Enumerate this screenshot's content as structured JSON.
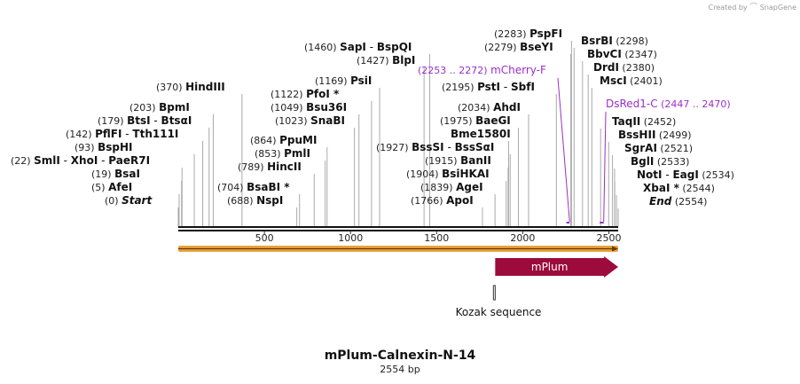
{
  "branding": {
    "created_by": "Created by",
    "product": "SnapGene"
  },
  "map": {
    "name": "mPlum-Calnexin-N-14",
    "length_label": "2554 bp",
    "length": 2554,
    "ticks": [
      500,
      1000,
      1500,
      2000,
      2500
    ]
  },
  "left_sites": [
    {
      "pos_label": "(0)",
      "names": [
        "Start"
      ],
      "italic": true,
      "cut": 0
    },
    {
      "pos_label": "(5)",
      "names": [
        "AfeI"
      ],
      "cut": 5
    },
    {
      "pos_label": "(19)",
      "names": [
        "BsaI"
      ],
      "cut": 19
    },
    {
      "pos_label": "(22)",
      "names": [
        "SmlI",
        "XhoI",
        "PaeR7I"
      ],
      "cut": 22
    },
    {
      "pos_label": "(93)",
      "names": [
        "BspHI"
      ],
      "cut": 93
    },
    {
      "pos_label": "(142)",
      "names": [
        "PflFI",
        "Tth111I"
      ],
      "cut": 142
    },
    {
      "pos_label": "(179)",
      "names": [
        "BtsI",
        "BtsαI"
      ],
      "cut": 179
    },
    {
      "pos_label": "(203)",
      "names": [
        "BpmI"
      ],
      "cut": 203
    },
    {
      "pos_label": "(370)",
      "names": [
        "HindIII"
      ],
      "cut": 370
    },
    {
      "pos_label": "(688)",
      "names": [
        "NspI"
      ],
      "cut": 688
    },
    {
      "pos_label": "(704)",
      "names": [
        "BsaBI *"
      ],
      "cut": 704
    },
    {
      "pos_label": "(789)",
      "names": [
        "HincII"
      ],
      "cut": 789
    },
    {
      "pos_label": "(853)",
      "names": [
        "PmlI"
      ],
      "cut": 853
    },
    {
      "pos_label": "(864)",
      "names": [
        "PpuMI"
      ],
      "cut": 864
    },
    {
      "pos_label": "(1023)",
      "names": [
        "SnaBI"
      ],
      "cut": 1023
    },
    {
      "pos_label": "(1049)",
      "names": [
        "Bsu36I"
      ],
      "cut": 1049
    },
    {
      "pos_label": "(1122)",
      "names": [
        "PfoI *"
      ],
      "cut": 1122
    },
    {
      "pos_label": "(1169)",
      "names": [
        "PsiI"
      ],
      "cut": 1169
    },
    {
      "pos_label": "(1427)",
      "names": [
        "BlpI"
      ],
      "cut": 1427
    },
    {
      "pos_label": "(1460)",
      "names": [
        "SapI",
        "BspQI"
      ],
      "cut": 1460
    },
    {
      "pos_label": "(1927)",
      "names": [
        "BssSI",
        "BssSαI"
      ],
      "cut": 1927
    },
    {
      "pos_label": "(1766)",
      "names": [
        "ApoI"
      ],
      "cut": 1766
    },
    {
      "pos_label": "(1839)",
      "names": [
        "AgeI"
      ],
      "cut": 1839
    },
    {
      "pos_label": "(1904)",
      "names": [
        "BsiHKAI"
      ],
      "cut": 1904
    },
    {
      "pos_label": "(1915)",
      "names": [
        "BanII"
      ],
      "cut": 1915
    },
    {
      "pos_label": "",
      "names": [
        "Bme1580I"
      ],
      "cut": 1918
    },
    {
      "pos_label": "(1975)",
      "names": [
        "BaeGI"
      ],
      "cut": 1975
    },
    {
      "pos_label": "(2034)",
      "names": [
        "AhdI"
      ],
      "cut": 2034
    },
    {
      "pos_label": "(2195)",
      "names": [
        "PstI",
        "SbfI"
      ],
      "cut": 2195
    },
    {
      "pos_label": "(2279)",
      "names": [
        "BseYI"
      ],
      "cut": 2279
    },
    {
      "pos_label": "(2283)",
      "names": [
        "PspFI"
      ],
      "cut": 2283
    }
  ],
  "right_sites": [
    {
      "names": [
        "BsrBI"
      ],
      "pos_label": "(2298)",
      "cut": 2298
    },
    {
      "names": [
        "BbvCI"
      ],
      "pos_label": "(2347)",
      "cut": 2347
    },
    {
      "names": [
        "DrdI"
      ],
      "pos_label": "(2380)",
      "cut": 2380
    },
    {
      "names": [
        "MscI"
      ],
      "pos_label": "(2401)",
      "cut": 2401
    },
    {
      "names": [
        "TaqII"
      ],
      "pos_label": "(2452)",
      "cut": 2452
    },
    {
      "names": [
        "BssHII"
      ],
      "pos_label": "(2499)",
      "cut": 2499
    },
    {
      "names": [
        "SgrAI"
      ],
      "pos_label": "(2521)",
      "cut": 2521
    },
    {
      "names": [
        "BglI"
      ],
      "pos_label": "(2533)",
      "cut": 2533
    },
    {
      "names": [
        "NotI",
        "EagI"
      ],
      "pos_label": "(2534)",
      "cut": 2534
    },
    {
      "names": [
        "XbaI *"
      ],
      "pos_label": "(2544)",
      "cut": 2544
    },
    {
      "names": [
        "End"
      ],
      "pos_label": "(2554)",
      "cut": 2554,
      "italic": true
    }
  ],
  "primers": [
    {
      "name": "mCherry-F",
      "range_label": "(2253 .. 2272)",
      "start": 2253,
      "end": 2272,
      "color": "#9b2fc8"
    },
    {
      "name": "DsRed1-C",
      "range_label": "(2447 .. 2470)",
      "start": 2447,
      "end": 2470,
      "color": "#9b2fc8"
    }
  ],
  "features": [
    {
      "name": "mPlum",
      "start": 1840,
      "end": 2554,
      "color": "#9c0b3c",
      "label_color": "#ffffff"
    },
    {
      "name": "Kozak sequence",
      "start": 1830,
      "end": 1839,
      "color": "#555555"
    }
  ],
  "orf": {
    "start": 0,
    "end": 2554,
    "color": "#e8a33d"
  }
}
